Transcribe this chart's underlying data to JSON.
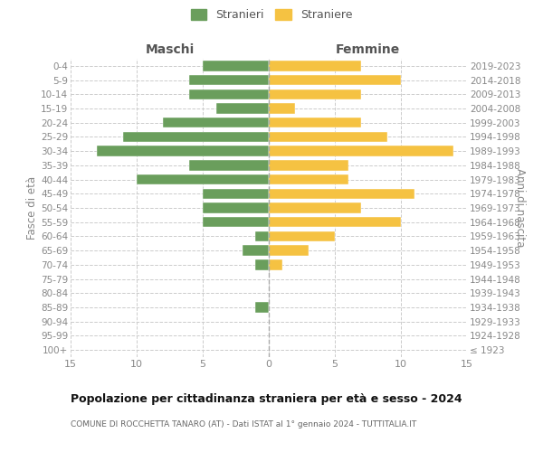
{
  "age_groups": [
    "100+",
    "95-99",
    "90-94",
    "85-89",
    "80-84",
    "75-79",
    "70-74",
    "65-69",
    "60-64",
    "55-59",
    "50-54",
    "45-49",
    "40-44",
    "35-39",
    "30-34",
    "25-29",
    "20-24",
    "15-19",
    "10-14",
    "5-9",
    "0-4"
  ],
  "birth_years": [
    "≤ 1923",
    "1924-1928",
    "1929-1933",
    "1934-1938",
    "1939-1943",
    "1944-1948",
    "1949-1953",
    "1954-1958",
    "1959-1963",
    "1964-1968",
    "1969-1973",
    "1974-1978",
    "1979-1983",
    "1984-1988",
    "1989-1993",
    "1994-1998",
    "1999-2003",
    "2004-2008",
    "2009-2013",
    "2014-2018",
    "2019-2023"
  ],
  "males": [
    0,
    0,
    0,
    1,
    0,
    0,
    1,
    2,
    1,
    5,
    5,
    5,
    10,
    6,
    13,
    11,
    8,
    4,
    6,
    6,
    5
  ],
  "females": [
    0,
    0,
    0,
    0,
    0,
    0,
    1,
    3,
    5,
    10,
    7,
    11,
    6,
    6,
    14,
    9,
    7,
    2,
    7,
    10,
    7
  ],
  "male_color": "#6a9e5c",
  "female_color": "#f5c242",
  "male_label": "Stranieri",
  "female_label": "Straniere",
  "title": "Popolazione per cittadinanza straniera per età e sesso - 2024",
  "subtitle": "COMUNE DI ROCCHETTA TANARO (AT) - Dati ISTAT al 1° gennaio 2024 - TUTTITALIA.IT",
  "header_left": "Maschi",
  "header_right": "Femmine",
  "ylabel_left": "Fasce di età",
  "ylabel_right": "Anni di nascita",
  "xlim": 15,
  "bg_color": "#ffffff",
  "grid_color": "#cccccc",
  "center_line_color": "#aaaaaa",
  "tick_color": "#888888",
  "title_color": "#111111",
  "subtitle_color": "#666666",
  "header_color": "#555555"
}
